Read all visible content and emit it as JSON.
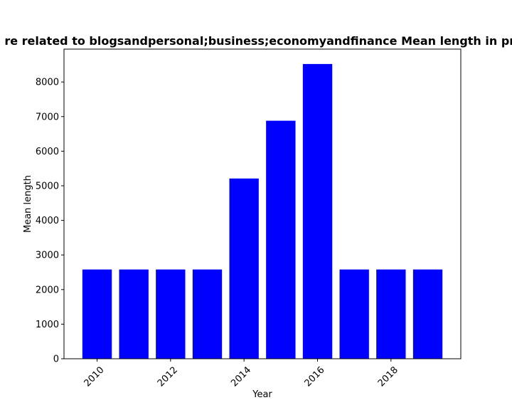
{
  "chart_data": {
    "type": "bar",
    "title": "re related to blogsandpersonal;business;economyandfinance Mean length in pri",
    "xlabel": "Year",
    "ylabel": "Mean length",
    "x": [
      2010,
      2011,
      2012,
      2013,
      2014,
      2015,
      2016,
      2017,
      2018,
      2019
    ],
    "values": [
      2580,
      2580,
      2580,
      2580,
      5210,
      6880,
      8520,
      2580,
      2580,
      2580
    ],
    "ylim": [
      0,
      8950
    ],
    "xlim": [
      2009.1,
      2019.9
    ],
    "yticks": [
      0,
      1000,
      2000,
      3000,
      4000,
      5000,
      6000,
      7000,
      8000
    ],
    "xticks": [
      2010,
      2012,
      2014,
      2016,
      2018
    ],
    "bar_color": "#0000ff",
    "grid": false,
    "legend": "none"
  }
}
